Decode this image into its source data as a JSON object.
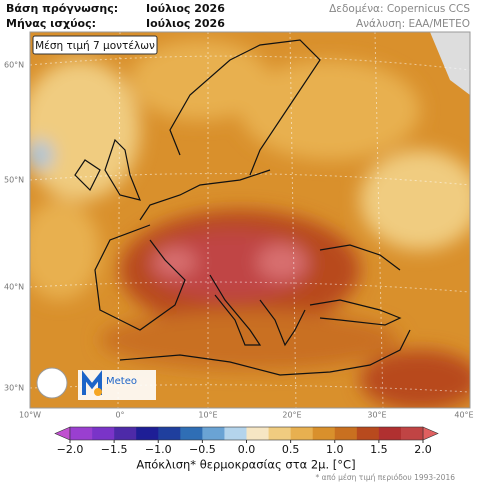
{
  "header": {
    "forecast_base_label": "Βάση πρόγνωσης:",
    "forecast_base_value": "Ιούλιος 2026",
    "valid_month_label": "Μήνας ισχύος:",
    "valid_month_value": "Ιούλιος 2026",
    "data_source": "Δεδομένα: Copernicus CCS",
    "analysis": "Ανάλυση: ΕΑΑ/METEO"
  },
  "map": {
    "caption": "Μέση τιμή 7 μοντέλων",
    "lat_labels": [
      "60°N",
      "50°N",
      "40°N",
      "30°N"
    ],
    "lon_labels": [
      "10°W",
      "0°",
      "10°E",
      "20°E",
      "30°E",
      "40°E"
    ],
    "logo_text": "Meteo"
  },
  "colorbar": {
    "min": -2,
    "max": 2,
    "ticks": [
      {
        "value": -2,
        "label": "−2.0"
      },
      {
        "value": -1.5,
        "label": "−1.5"
      },
      {
        "value": -1,
        "label": "−1.0"
      },
      {
        "value": -0.5,
        "label": "−0.5"
      },
      {
        "value": 0,
        "label": "0.0"
      },
      {
        "value": 0.5,
        "label": "0.5"
      },
      {
        "value": 1,
        "label": "1.0"
      },
      {
        "value": 1.5,
        "label": "1.5"
      },
      {
        "value": 2,
        "label": "2.0"
      }
    ],
    "colors": [
      "#9a3fd0",
      "#7a34c8",
      "#4d2aa8",
      "#1e1e96",
      "#1f3f9e",
      "#2f6eb5",
      "#6aa3d4",
      "#b4d4ec",
      "#f6e6c4",
      "#f0cc80",
      "#e8b050",
      "#d9902c",
      "#c97020",
      "#b84a1e",
      "#b03030",
      "#c04444"
    ],
    "under_color": "#c050d0",
    "over_color": "#e06060",
    "label": "Απόκλιση* θερμοκρασίας στα 2μ. [°C]",
    "footnote": "* από μέση τιμή περιόδου 1993-2016"
  }
}
